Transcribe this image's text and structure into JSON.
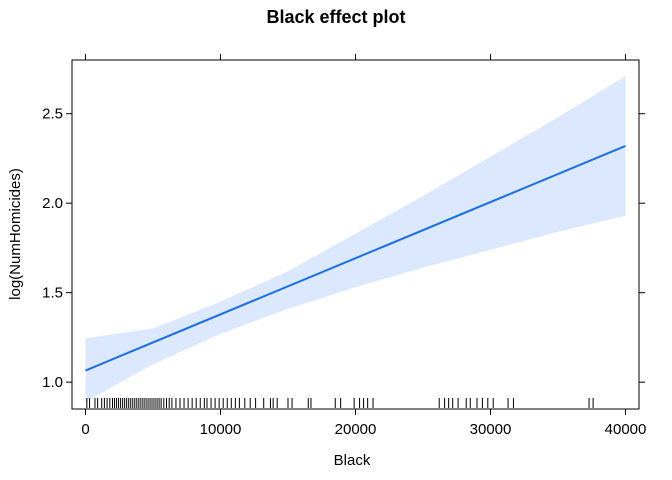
{
  "chart_data": {
    "type": "line",
    "title": "Black effect plot",
    "xlabel": "Black",
    "ylabel": "log(NumHomicides)",
    "xlim": [
      -1000,
      41000
    ],
    "ylim": [
      0.85,
      2.8
    ],
    "x_ticks": [
      0,
      10000,
      20000,
      30000,
      40000
    ],
    "x_tick_labels": [
      "0",
      "10000",
      "20000",
      "30000",
      "40000"
    ],
    "y_ticks": [
      1.0,
      1.5,
      2.0,
      2.5
    ],
    "y_tick_labels": [
      "1.0",
      "1.5",
      "2.0",
      "2.5"
    ],
    "grid": false,
    "line_color": "#1a6fe8",
    "band_color": "#dce8fd",
    "series": [
      {
        "x": [
          0,
          40000
        ],
        "y": [
          1.065,
          2.32
        ]
      }
    ],
    "band": {
      "x": [
        0,
        5000,
        10000,
        15000,
        20000,
        25000,
        30000,
        35000,
        40000
      ],
      "lower": [
        0.89,
        1.1,
        1.27,
        1.41,
        1.53,
        1.64,
        1.74,
        1.84,
        1.93
      ],
      "upper": [
        1.245,
        1.3,
        1.45,
        1.62,
        1.83,
        2.04,
        2.26,
        2.48,
        2.71
      ]
    },
    "rug": [
      100,
      300,
      700,
      900,
      1200,
      1400,
      1600,
      1800,
      2000,
      2150,
      2300,
      2450,
      2600,
      2750,
      2900,
      3050,
      3200,
      3350,
      3500,
      3650,
      3800,
      3950,
      4100,
      4250,
      4400,
      4550,
      4700,
      4850,
      5000,
      5150,
      5300,
      5450,
      5600,
      5800,
      6000,
      6200,
      6400,
      6700,
      7000,
      7300,
      7600,
      7900,
      8200,
      8500,
      8800,
      9000,
      9300,
      9600,
      9900,
      10200,
      10500,
      10800,
      11100,
      11400,
      11800,
      12200,
      12600,
      13200,
      13700,
      13900,
      14200,
      15000,
      15300,
      16500,
      16700,
      18500,
      18900,
      19900,
      20300,
      20600,
      20900,
      21300,
      26200,
      26600,
      26900,
      27200,
      27600,
      28200,
      28500,
      29000,
      29400,
      29800,
      30200,
      31300,
      31700,
      37300,
      37600
    ]
  }
}
